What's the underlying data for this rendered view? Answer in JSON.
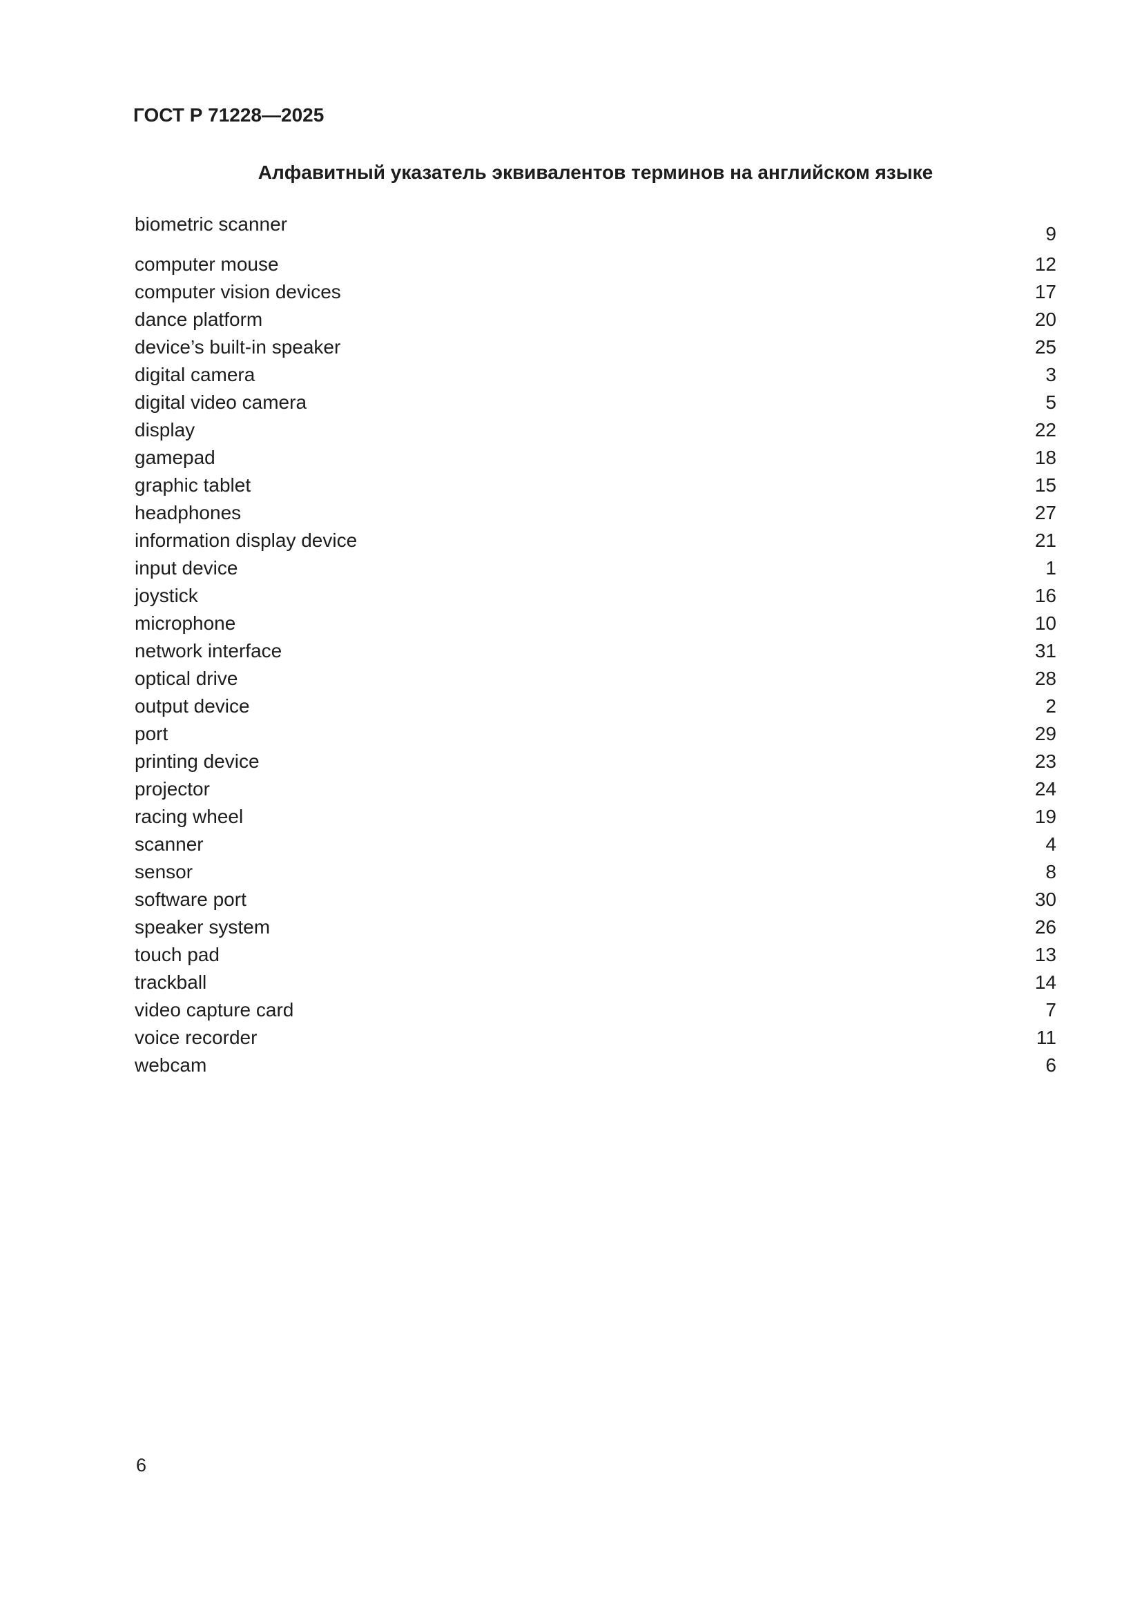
{
  "page": {
    "doc_number": "ГОСТ Р 71228—2025",
    "index_title": "Алфавитный указатель эквивалентов терминов на английском языке",
    "page_number": "6"
  },
  "index": {
    "entries": [
      {
        "term": "biometric scanner",
        "ref": "9"
      },
      {
        "term": "computer mouse",
        "ref": "12"
      },
      {
        "term": "computer vision devices",
        "ref": "17"
      },
      {
        "term": "dance platform",
        "ref": "20"
      },
      {
        "term": "device’s built-in speaker",
        "ref": "25"
      },
      {
        "term": "digital camera",
        "ref": "3"
      },
      {
        "term": "digital video camera",
        "ref": "5"
      },
      {
        "term": "display",
        "ref": "22"
      },
      {
        "term": "gamepad",
        "ref": "18"
      },
      {
        "term": "graphic tablet",
        "ref": "15"
      },
      {
        "term": "headphones",
        "ref": "27"
      },
      {
        "term": "information display device",
        "ref": "21"
      },
      {
        "term": "input device",
        "ref": "1"
      },
      {
        "term": "joystick",
        "ref": "16"
      },
      {
        "term": "microphone",
        "ref": "10"
      },
      {
        "term": "network interface",
        "ref": "31"
      },
      {
        "term": "optical drive",
        "ref": "28"
      },
      {
        "term": "output device",
        "ref": "2"
      },
      {
        "term": "port",
        "ref": "29"
      },
      {
        "term": "printing device",
        "ref": "23"
      },
      {
        "term": "projector",
        "ref": "24"
      },
      {
        "term": "racing wheel",
        "ref": "19"
      },
      {
        "term": "scanner",
        "ref": "4"
      },
      {
        "term": "sensor",
        "ref": "8"
      },
      {
        "term": "software port",
        "ref": "30"
      },
      {
        "term": "speaker system",
        "ref": "26"
      },
      {
        "term": "touch pad",
        "ref": "13"
      },
      {
        "term": "trackball",
        "ref": "14"
      },
      {
        "term": "video capture card",
        "ref": "7"
      },
      {
        "term": "voice recorder",
        "ref": "11"
      },
      {
        "term": "webcam",
        "ref": "6"
      }
    ]
  }
}
